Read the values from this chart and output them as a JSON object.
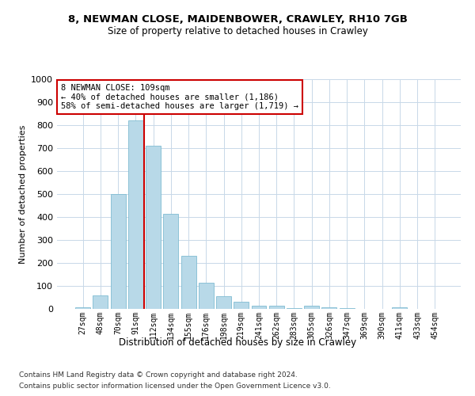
{
  "title1": "8, NEWMAN CLOSE, MAIDENBOWER, CRAWLEY, RH10 7GB",
  "title2": "Size of property relative to detached houses in Crawley",
  "xlabel": "Distribution of detached houses by size in Crawley",
  "ylabel": "Number of detached properties",
  "footnote1": "Contains HM Land Registry data © Crown copyright and database right 2024.",
  "footnote2": "Contains public sector information licensed under the Open Government Licence v3.0.",
  "bar_labels": [
    "27sqm",
    "48sqm",
    "70sqm",
    "91sqm",
    "112sqm",
    "134sqm",
    "155sqm",
    "176sqm",
    "198sqm",
    "219sqm",
    "241sqm",
    "262sqm",
    "283sqm",
    "305sqm",
    "326sqm",
    "347sqm",
    "369sqm",
    "390sqm",
    "411sqm",
    "433sqm",
    "454sqm"
  ],
  "bar_values": [
    8,
    57,
    500,
    820,
    710,
    415,
    230,
    115,
    55,
    32,
    15,
    13,
    5,
    13,
    7,
    3,
    0,
    0,
    8,
    0,
    0
  ],
  "bar_color": "#b8d9e8",
  "bar_edge_color": "#7fbcd2",
  "grid_color": "#c8d8e8",
  "marker_line_color": "#cc0000",
  "annotation_line1": "8 NEWMAN CLOSE: 109sqm",
  "annotation_line2": "← 40% of detached houses are smaller (1,186)",
  "annotation_line3": "58% of semi-detached houses are larger (1,719) →",
  "annotation_box_color": "#ffffff",
  "annotation_box_edge": "#cc0000",
  "ylim": [
    0,
    1000
  ],
  "yticks": [
    0,
    100,
    200,
    300,
    400,
    500,
    600,
    700,
    800,
    900,
    1000
  ],
  "red_line_x": 3.5,
  "figsize": [
    6.0,
    5.0
  ],
  "dpi": 100
}
